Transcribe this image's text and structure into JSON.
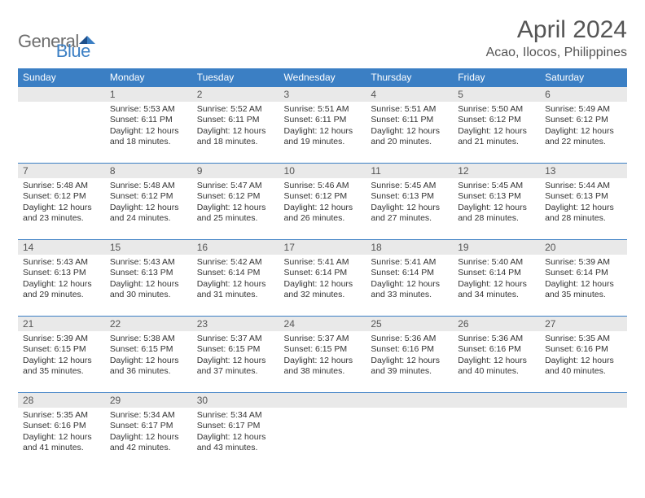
{
  "logo": {
    "general": "General",
    "blue": "Blue"
  },
  "title": "April 2024",
  "subtitle": "Acao, Ilocos, Philippines",
  "colors": {
    "header_bg": "#3b7fc4",
    "header_text": "#ffffff",
    "daynum_bg": "#e9e9e9",
    "border_top": "#3b7fc4",
    "text": "#333333"
  },
  "dayNames": [
    "Sunday",
    "Monday",
    "Tuesday",
    "Wednesday",
    "Thursday",
    "Friday",
    "Saturday"
  ],
  "weeks": [
    [
      {
        "blank": true
      },
      {
        "num": "1",
        "sunrise": "5:53 AM",
        "sunset": "6:11 PM",
        "daylight": "Daylight: 12 hours and 18 minutes."
      },
      {
        "num": "2",
        "sunrise": "5:52 AM",
        "sunset": "6:11 PM",
        "daylight": "Daylight: 12 hours and 18 minutes."
      },
      {
        "num": "3",
        "sunrise": "5:51 AM",
        "sunset": "6:11 PM",
        "daylight": "Daylight: 12 hours and 19 minutes."
      },
      {
        "num": "4",
        "sunrise": "5:51 AM",
        "sunset": "6:11 PM",
        "daylight": "Daylight: 12 hours and 20 minutes."
      },
      {
        "num": "5",
        "sunrise": "5:50 AM",
        "sunset": "6:12 PM",
        "daylight": "Daylight: 12 hours and 21 minutes."
      },
      {
        "num": "6",
        "sunrise": "5:49 AM",
        "sunset": "6:12 PM",
        "daylight": "Daylight: 12 hours and 22 minutes."
      }
    ],
    [
      {
        "num": "7",
        "sunrise": "5:48 AM",
        "sunset": "6:12 PM",
        "daylight": "Daylight: 12 hours and 23 minutes."
      },
      {
        "num": "8",
        "sunrise": "5:48 AM",
        "sunset": "6:12 PM",
        "daylight": "Daylight: 12 hours and 24 minutes."
      },
      {
        "num": "9",
        "sunrise": "5:47 AM",
        "sunset": "6:12 PM",
        "daylight": "Daylight: 12 hours and 25 minutes."
      },
      {
        "num": "10",
        "sunrise": "5:46 AM",
        "sunset": "6:12 PM",
        "daylight": "Daylight: 12 hours and 26 minutes."
      },
      {
        "num": "11",
        "sunrise": "5:45 AM",
        "sunset": "6:13 PM",
        "daylight": "Daylight: 12 hours and 27 minutes."
      },
      {
        "num": "12",
        "sunrise": "5:45 AM",
        "sunset": "6:13 PM",
        "daylight": "Daylight: 12 hours and 28 minutes."
      },
      {
        "num": "13",
        "sunrise": "5:44 AM",
        "sunset": "6:13 PM",
        "daylight": "Daylight: 12 hours and 28 minutes."
      }
    ],
    [
      {
        "num": "14",
        "sunrise": "5:43 AM",
        "sunset": "6:13 PM",
        "daylight": "Daylight: 12 hours and 29 minutes."
      },
      {
        "num": "15",
        "sunrise": "5:43 AM",
        "sunset": "6:13 PM",
        "daylight": "Daylight: 12 hours and 30 minutes."
      },
      {
        "num": "16",
        "sunrise": "5:42 AM",
        "sunset": "6:14 PM",
        "daylight": "Daylight: 12 hours and 31 minutes."
      },
      {
        "num": "17",
        "sunrise": "5:41 AM",
        "sunset": "6:14 PM",
        "daylight": "Daylight: 12 hours and 32 minutes."
      },
      {
        "num": "18",
        "sunrise": "5:41 AM",
        "sunset": "6:14 PM",
        "daylight": "Daylight: 12 hours and 33 minutes."
      },
      {
        "num": "19",
        "sunrise": "5:40 AM",
        "sunset": "6:14 PM",
        "daylight": "Daylight: 12 hours and 34 minutes."
      },
      {
        "num": "20",
        "sunrise": "5:39 AM",
        "sunset": "6:14 PM",
        "daylight": "Daylight: 12 hours and 35 minutes."
      }
    ],
    [
      {
        "num": "21",
        "sunrise": "5:39 AM",
        "sunset": "6:15 PM",
        "daylight": "Daylight: 12 hours and 35 minutes."
      },
      {
        "num": "22",
        "sunrise": "5:38 AM",
        "sunset": "6:15 PM",
        "daylight": "Daylight: 12 hours and 36 minutes."
      },
      {
        "num": "23",
        "sunrise": "5:37 AM",
        "sunset": "6:15 PM",
        "daylight": "Daylight: 12 hours and 37 minutes."
      },
      {
        "num": "24",
        "sunrise": "5:37 AM",
        "sunset": "6:15 PM",
        "daylight": "Daylight: 12 hours and 38 minutes."
      },
      {
        "num": "25",
        "sunrise": "5:36 AM",
        "sunset": "6:16 PM",
        "daylight": "Daylight: 12 hours and 39 minutes."
      },
      {
        "num": "26",
        "sunrise": "5:36 AM",
        "sunset": "6:16 PM",
        "daylight": "Daylight: 12 hours and 40 minutes."
      },
      {
        "num": "27",
        "sunrise": "5:35 AM",
        "sunset": "6:16 PM",
        "daylight": "Daylight: 12 hours and 40 minutes."
      }
    ],
    [
      {
        "num": "28",
        "sunrise": "5:35 AM",
        "sunset": "6:16 PM",
        "daylight": "Daylight: 12 hours and 41 minutes."
      },
      {
        "num": "29",
        "sunrise": "5:34 AM",
        "sunset": "6:17 PM",
        "daylight": "Daylight: 12 hours and 42 minutes."
      },
      {
        "num": "30",
        "sunrise": "5:34 AM",
        "sunset": "6:17 PM",
        "daylight": "Daylight: 12 hours and 43 minutes."
      },
      {
        "blank": true
      },
      {
        "blank": true
      },
      {
        "blank": true
      },
      {
        "blank": true
      }
    ]
  ],
  "labels": {
    "sunrisePrefix": "Sunrise: ",
    "sunsetPrefix": "Sunset: "
  }
}
